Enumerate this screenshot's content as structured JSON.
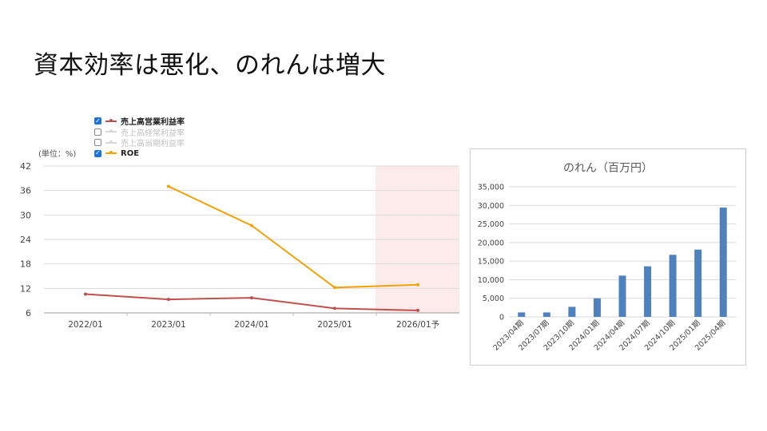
{
  "slide": {
    "title": "資本効率は悪化、のれんは増大"
  },
  "chart_data": [
    {
      "type": "line",
      "unit_label": "(単位：%)",
      "categories": [
        "2022/01",
        "2023/01",
        "2024/01",
        "2025/01",
        "2026/01予"
      ],
      "ylim": [
        6,
        42
      ],
      "yticks": [
        6,
        12,
        18,
        24,
        30,
        36,
        42
      ],
      "grid": true,
      "forecast_shaded_category": "2026/01予",
      "legend": {
        "placement": "top-left",
        "items": [
          {
            "label": "売上高営業利益率",
            "checked": true
          },
          {
            "label": "売上高経常利益率",
            "checked": false
          },
          {
            "label": "売上高当期利益率",
            "checked": false
          },
          {
            "label": "ROE",
            "checked": true
          }
        ]
      },
      "series": [
        {
          "name": "売上高営業利益率",
          "color": "#c0504d",
          "values": [
            10.6,
            9.3,
            9.7,
            7.1,
            6.6
          ]
        },
        {
          "name": "ROE",
          "color": "#f0a30a",
          "values": [
            null,
            37.0,
            27.4,
            12.2,
            12.9
          ]
        }
      ]
    },
    {
      "type": "bar",
      "title": "のれん（百万円）",
      "categories": [
        "2023/04期",
        "2023/07期",
        "2023/10期",
        "2024/01期",
        "2024/04期",
        "2024/07期",
        "2024/10期",
        "2025/01期",
        "2025/04期"
      ],
      "values": [
        1200,
        1200,
        2700,
        5000,
        11100,
        13600,
        16700,
        18100,
        29400
      ],
      "ylim": [
        0,
        35000
      ],
      "yticks": [
        "0",
        "5,000",
        "10,000",
        "15,000",
        "20,000",
        "25,000",
        "30,000",
        "35,000"
      ],
      "bar_color": "#4f81bd",
      "grid": true
    }
  ]
}
